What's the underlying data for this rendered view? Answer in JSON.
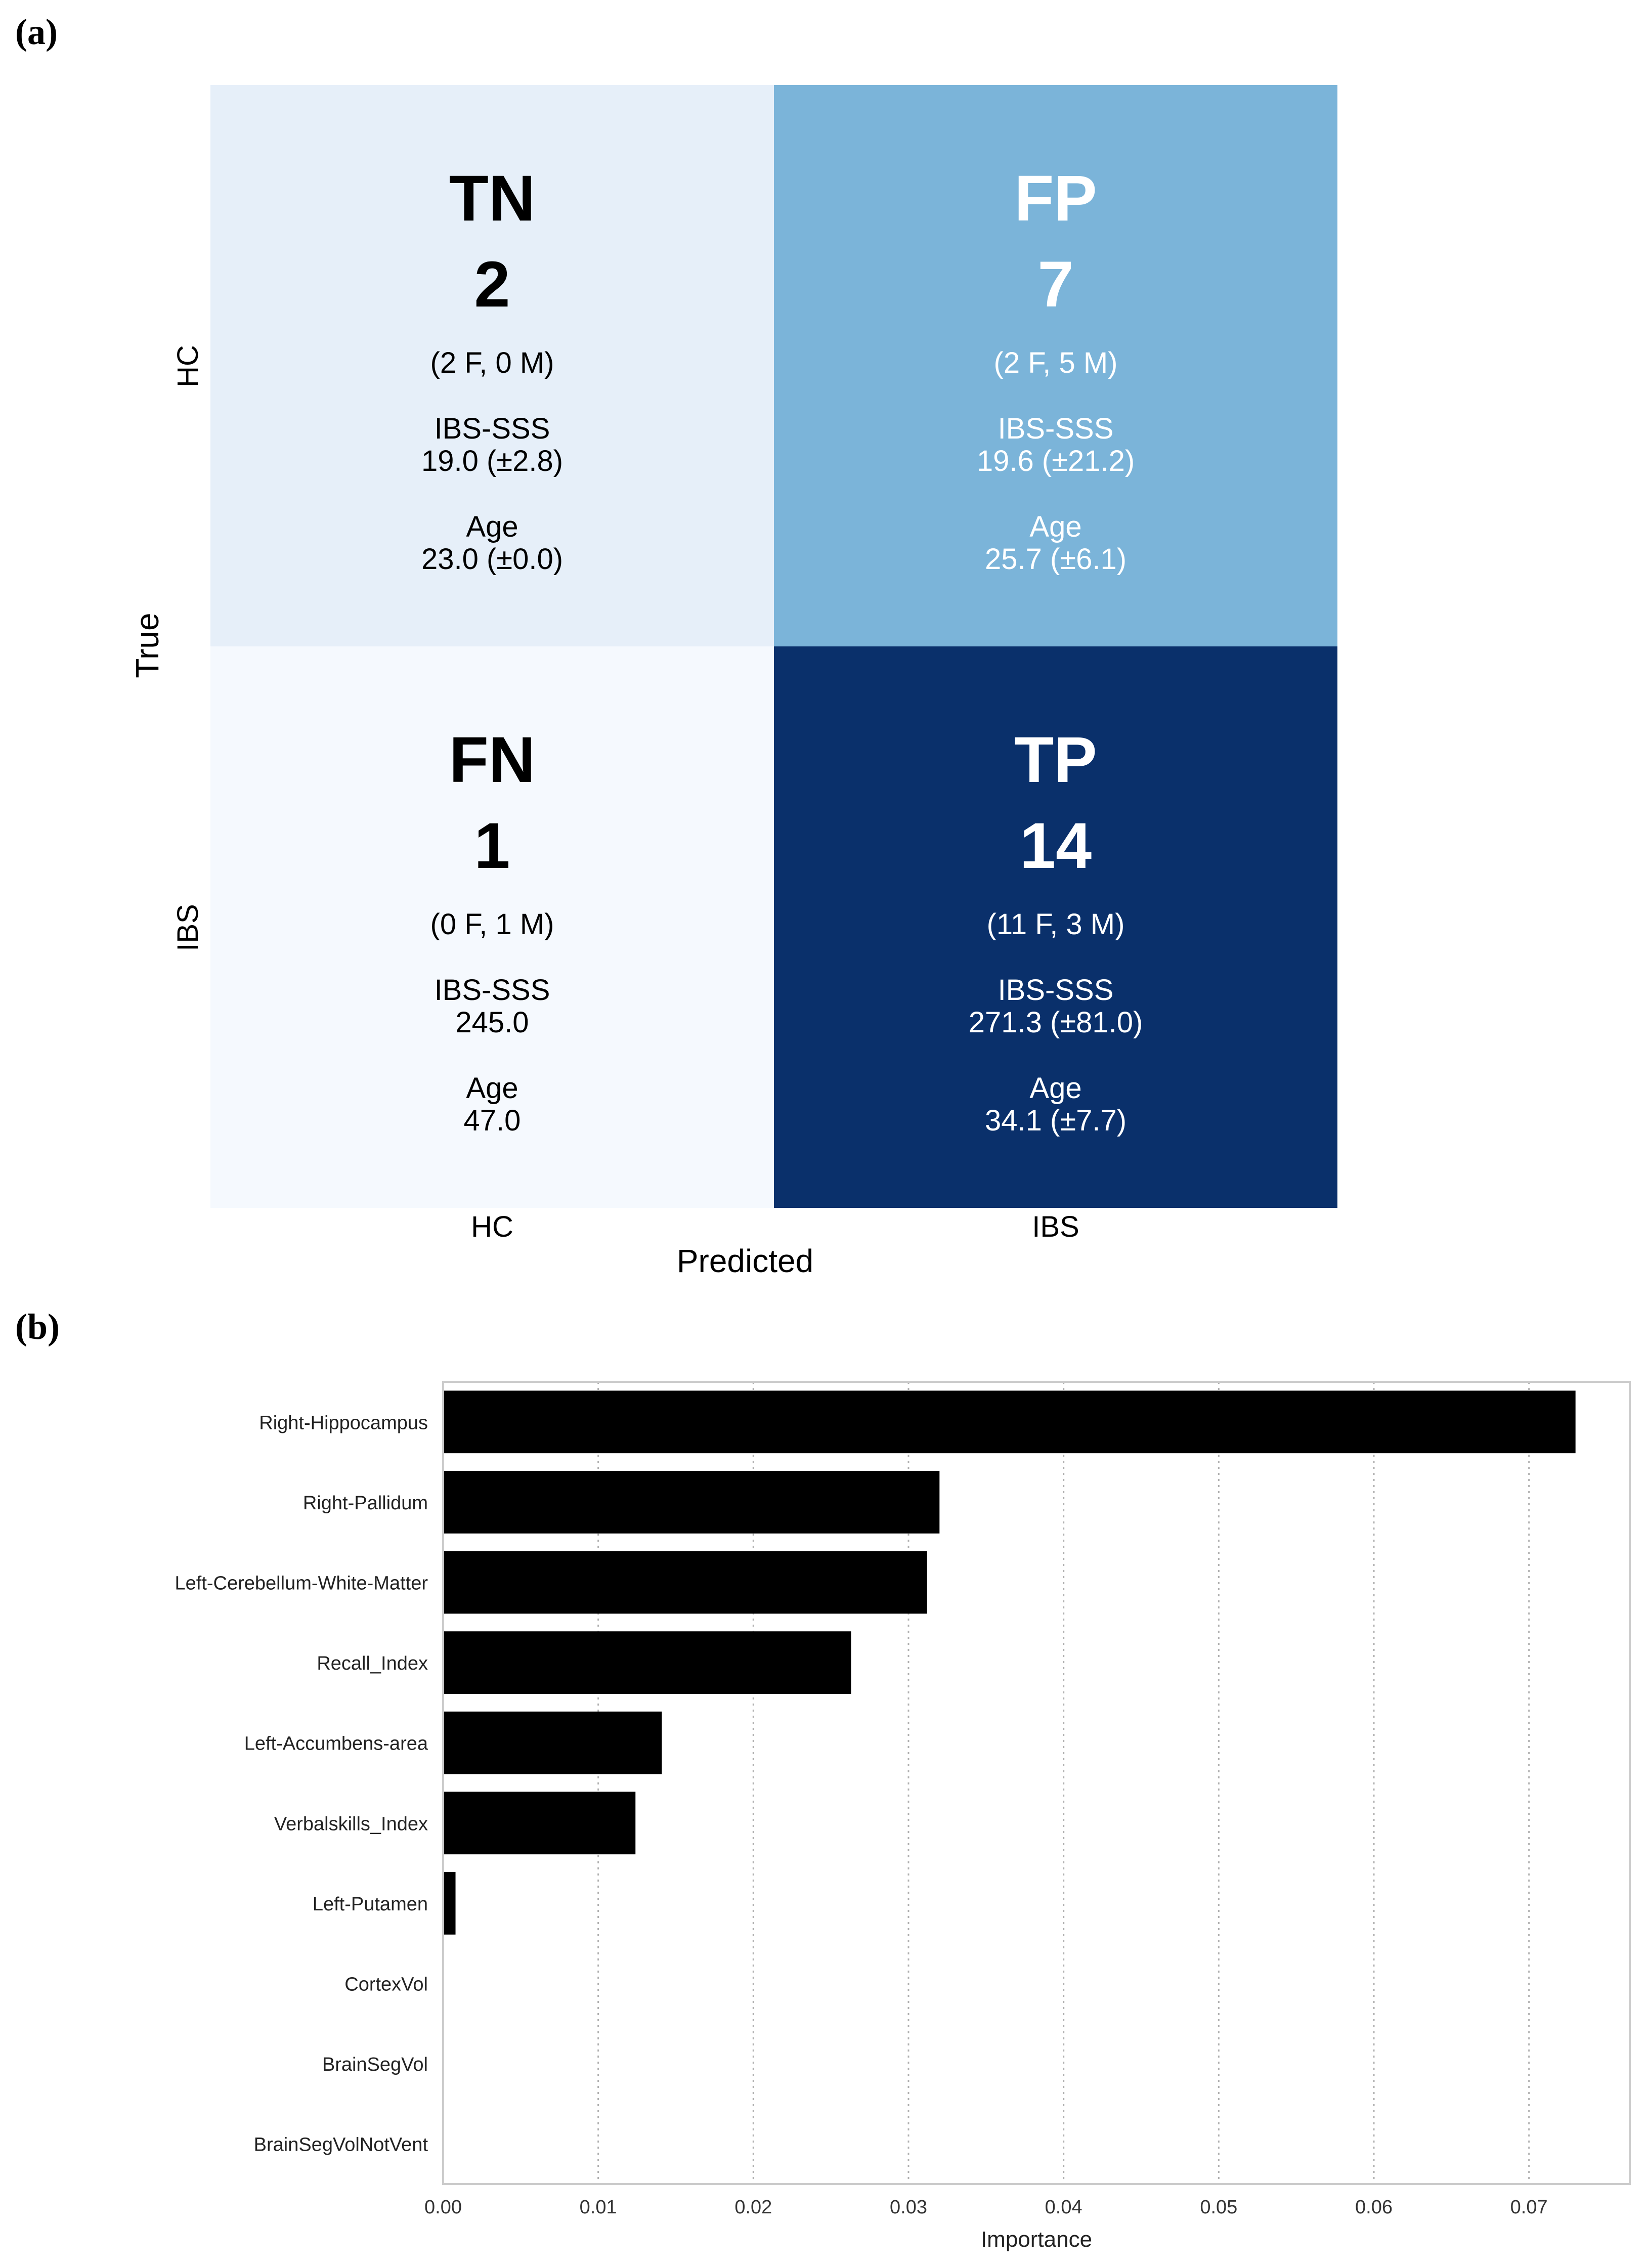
{
  "panels": {
    "a": "(a)",
    "b": "(b)"
  },
  "chart_data": [
    {
      "type": "heatmap",
      "title": "",
      "xlabel": "Predicted",
      "ylabel": "True",
      "x_categories": [
        "HC",
        "IBS"
      ],
      "y_categories": [
        "HC",
        "IBS"
      ],
      "colors": {
        "TN": "#e6eff9",
        "FP": "#7bb4d9",
        "FN": "#f5f9fe",
        "TP": "#0a306b",
        "dark_text": "#000000",
        "light_text": "#ffffff"
      },
      "cells": [
        {
          "id": "TN",
          "abbr": "TN",
          "count": "2",
          "gender": "(2 F, 0 M)",
          "sss_label": "IBS-SSS",
          "sss": "19.0 (±2.8)",
          "age_label": "Age",
          "age": "23.0 (±0.0)"
        },
        {
          "id": "FP",
          "abbr": "FP",
          "count": "7",
          "gender": "(2 F, 5 M)",
          "sss_label": "IBS-SSS",
          "sss": "19.6 (±21.2)",
          "age_label": "Age",
          "age": "25.7 (±6.1)"
        },
        {
          "id": "FN",
          "abbr": "FN",
          "count": "1",
          "gender": "(0 F, 1 M)",
          "sss_label": "IBS-SSS",
          "sss": "245.0",
          "age_label": "Age",
          "age": "47.0"
        },
        {
          "id": "TP",
          "abbr": "TP",
          "count": "14",
          "gender": "(11 F, 3 M)",
          "sss_label": "IBS-SSS",
          "sss": "271.3 (±81.0)",
          "age_label": "Age",
          "age": "34.1 (±7.7)"
        }
      ]
    },
    {
      "type": "bar",
      "orientation": "horizontal",
      "title": "",
      "xlabel": "Importance",
      "ylabel": "",
      "categories": [
        "Right-Hippocampus",
        "Right-Pallidum",
        "Left-Cerebellum-White-Matter",
        "Recall_Index",
        "Left-Accumbens-area",
        "Verbalskills_Index",
        "Left-Putamen",
        "CortexVol",
        "BrainSegVol",
        "BrainSegVolNotVent"
      ],
      "values": [
        0.073,
        0.032,
        0.0312,
        0.0263,
        0.0141,
        0.0124,
        0.0008,
        0,
        0,
        0
      ],
      "xlim": [
        0,
        0.0765
      ],
      "xticks": [
        0,
        0.01,
        0.02,
        0.03,
        0.04,
        0.05,
        0.06,
        0.07
      ],
      "xtick_labels": [
        "0.00",
        "0.01",
        "0.02",
        "0.03",
        "0.04",
        "0.05",
        "0.06",
        "0.07"
      ],
      "grid": "x-dotted",
      "bar_color": "#000000"
    }
  ]
}
